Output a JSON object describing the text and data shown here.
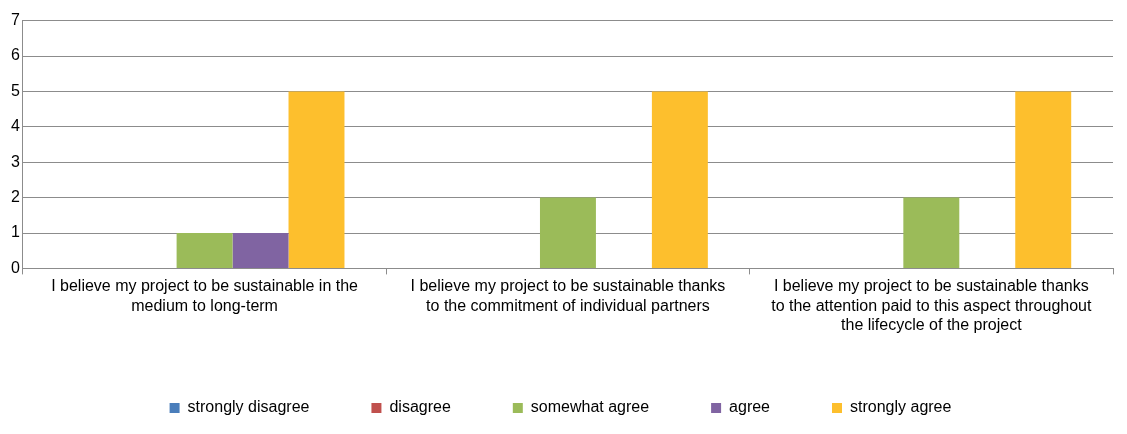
{
  "chart_data": {
    "type": "bar",
    "categories": [
      "I believe my project to be sustainable in the medium to long-term",
      "I believe my project to be sustainable thanks to the commitment of individual partners",
      "I believe my project to be sustainable thanks to the attention paid to this aspect throughout the lifecycle of the project"
    ],
    "series": [
      {
        "name": "strongly disagree",
        "color": "#4a7ebb",
        "values": [
          0,
          0,
          0
        ]
      },
      {
        "name": "disagree",
        "color": "#c0504d",
        "values": [
          0,
          0,
          0
        ]
      },
      {
        "name": "somewhat agree",
        "color": "#9bbb59",
        "values": [
          1,
          2,
          2
        ]
      },
      {
        "name": "agree",
        "color": "#8064a2",
        "values": [
          1,
          0,
          0
        ]
      },
      {
        "name": "strongly agree",
        "color": "#fdbf2d",
        "values": [
          5,
          5,
          5
        ]
      }
    ],
    "ylim": [
      0,
      7
    ],
    "yticks": [
      0,
      1,
      2,
      3,
      4,
      5,
      6,
      7
    ],
    "grid": "y",
    "legend": "bottom"
  }
}
